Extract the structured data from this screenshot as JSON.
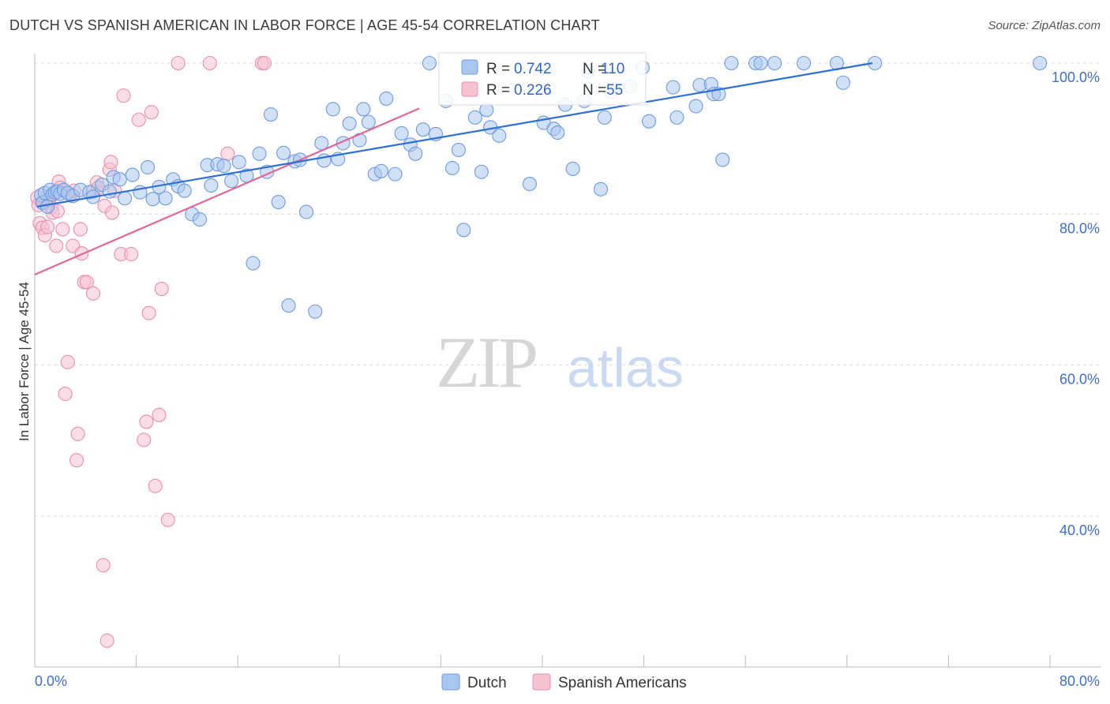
{
  "header": {
    "title": "DUTCH VS SPANISH AMERICAN IN LABOR FORCE | AGE 45-54 CORRELATION CHART",
    "source": "Source: ZipAtlas.com"
  },
  "watermark": {
    "zip": "ZIP",
    "atlas": "atlas"
  },
  "colors": {
    "dutch_fill": "#a9c6ee",
    "dutch_stroke": "#6f9be0",
    "dutch_line": "#2e6fd6",
    "spanish_fill": "#f6c1d1",
    "spanish_stroke": "#ea8fab",
    "spanish_line": "#e0679a",
    "tick_label": "#3f6fc9",
    "grid": "#dddddd"
  },
  "chart_data": {
    "type": "scatter",
    "title": "DUTCH VS SPANISH AMERICAN IN LABOR FORCE | AGE 45-54 CORRELATION CHART",
    "xlabel": "",
    "ylabel": "In Labor Force | Age 45-54",
    "xlim": [
      0,
      80
    ],
    "ylim": [
      20,
      101
    ],
    "x_tick_labels": [
      "0.0%",
      "80.0%"
    ],
    "y_ticks": [
      40,
      60,
      80,
      100
    ],
    "y_tick_labels": [
      "40.0%",
      "60.0%",
      "80.0%",
      "100.0%"
    ],
    "legend": {
      "dutch": {
        "r_label": "R =",
        "r_value": "0.742",
        "n_label": "N =",
        "n_value": "110"
      },
      "spanish": {
        "r_label": "R =",
        "r_value": "0.226",
        "n_label": "N =",
        "n_value": "55"
      }
    },
    "series": [
      {
        "name": "Dutch",
        "trend": {
          "x": [
            0.2,
            66
          ],
          "y": [
            81.0,
            100.0
          ]
        },
        "points": [
          [
            0.5,
            82.5
          ],
          [
            0.6,
            81.5
          ],
          [
            0.8,
            82.8
          ],
          [
            1.0,
            81.0
          ],
          [
            1.2,
            83.2
          ],
          [
            1.4,
            82.6
          ],
          [
            1.6,
            82.9
          ],
          [
            1.8,
            83.0
          ],
          [
            2.0,
            82.7
          ],
          [
            2.3,
            83.2
          ],
          [
            2.6,
            82.8
          ],
          [
            3.0,
            82.4
          ],
          [
            3.6,
            83.2
          ],
          [
            4.3,
            82.9
          ],
          [
            4.6,
            82.3
          ],
          [
            5.3,
            83.9
          ],
          [
            5.9,
            83.0
          ],
          [
            6.2,
            84.9
          ],
          [
            6.7,
            84.6
          ],
          [
            7.1,
            82.1
          ],
          [
            7.7,
            85.2
          ],
          [
            8.3,
            82.9
          ],
          [
            8.9,
            86.2
          ],
          [
            9.3,
            82.0
          ],
          [
            9.8,
            83.6
          ],
          [
            10.3,
            82.1
          ],
          [
            10.9,
            84.6
          ],
          [
            11.3,
            83.7
          ],
          [
            11.8,
            83.1
          ],
          [
            12.4,
            80.0
          ],
          [
            13.0,
            79.3
          ],
          [
            13.6,
            86.5
          ],
          [
            13.9,
            83.8
          ],
          [
            14.4,
            86.6
          ],
          [
            14.9,
            86.4
          ],
          [
            15.5,
            84.4
          ],
          [
            16.1,
            86.9
          ],
          [
            16.7,
            85.1
          ],
          [
            17.2,
            73.5
          ],
          [
            17.7,
            88.0
          ],
          [
            18.3,
            85.6
          ],
          [
            18.6,
            93.2
          ],
          [
            19.2,
            81.6
          ],
          [
            19.6,
            88.1
          ],
          [
            20.0,
            67.9
          ],
          [
            20.5,
            87.0
          ],
          [
            20.9,
            87.2
          ],
          [
            21.4,
            80.3
          ],
          [
            22.1,
            67.1
          ],
          [
            22.6,
            89.4
          ],
          [
            22.8,
            87.1
          ],
          [
            23.5,
            93.9
          ],
          [
            23.9,
            87.3
          ],
          [
            24.3,
            89.4
          ],
          [
            24.8,
            92.0
          ],
          [
            25.6,
            89.8
          ],
          [
            25.9,
            93.9
          ],
          [
            26.3,
            92.2
          ],
          [
            26.8,
            85.3
          ],
          [
            27.3,
            85.7
          ],
          [
            27.7,
            95.3
          ],
          [
            28.4,
            85.3
          ],
          [
            28.9,
            90.7
          ],
          [
            29.6,
            89.2
          ],
          [
            30.0,
            88.0
          ],
          [
            30.6,
            91.2
          ],
          [
            31.1,
            100.0
          ],
          [
            31.6,
            90.6
          ],
          [
            32.4,
            95.0
          ],
          [
            32.9,
            86.1
          ],
          [
            33.4,
            88.5
          ],
          [
            33.8,
            77.9
          ],
          [
            34.7,
            92.8
          ],
          [
            35.2,
            85.6
          ],
          [
            35.6,
            93.8
          ],
          [
            35.9,
            91.5
          ],
          [
            36.6,
            90.4
          ],
          [
            39.0,
            84.0
          ],
          [
            40.1,
            92.1
          ],
          [
            40.9,
            91.3
          ],
          [
            41.2,
            90.8
          ],
          [
            41.8,
            94.5
          ],
          [
            42.4,
            86.0
          ],
          [
            43.3,
            95.0
          ],
          [
            43.6,
            98.9
          ],
          [
            44.6,
            83.3
          ],
          [
            44.9,
            92.8
          ],
          [
            45.4,
            96.2
          ],
          [
            46.9,
            96.9
          ],
          [
            47.9,
            99.4
          ],
          [
            48.4,
            92.3
          ],
          [
            50.3,
            96.8
          ],
          [
            50.6,
            92.8
          ],
          [
            52.1,
            94.3
          ],
          [
            52.4,
            97.1
          ],
          [
            53.3,
            97.2
          ],
          [
            53.5,
            95.9
          ],
          [
            53.9,
            95.9
          ],
          [
            54.2,
            87.2
          ],
          [
            54.9,
            100.0
          ],
          [
            56.8,
            100.0
          ],
          [
            57.2,
            100.0
          ],
          [
            58.3,
            100.0
          ],
          [
            60.6,
            100.0
          ],
          [
            63.2,
            100.0
          ],
          [
            63.7,
            97.4
          ],
          [
            66.2,
            100.0
          ],
          [
            79.2,
            100.0
          ]
        ]
      },
      {
        "name": "Spanish Americans",
        "trend": {
          "x": [
            0.0,
            30.3
          ],
          "y": [
            72.0,
            94.0
          ]
        },
        "points": [
          [
            0.2,
            82.2
          ],
          [
            0.3,
            81.2
          ],
          [
            0.4,
            78.8
          ],
          [
            0.6,
            78.2
          ],
          [
            0.7,
            81.6
          ],
          [
            0.8,
            77.2
          ],
          [
            1.0,
            78.3
          ],
          [
            1.1,
            81.9
          ],
          [
            1.3,
            80.9
          ],
          [
            1.4,
            80.2
          ],
          [
            1.6,
            82.7
          ],
          [
            1.7,
            75.8
          ],
          [
            1.8,
            80.4
          ],
          [
            1.9,
            84.3
          ],
          [
            2.0,
            83.5
          ],
          [
            2.2,
            78.0
          ],
          [
            2.4,
            56.2
          ],
          [
            2.6,
            60.4
          ],
          [
            2.8,
            82.6
          ],
          [
            3.0,
            75.8
          ],
          [
            3.1,
            83.1
          ],
          [
            3.3,
            47.4
          ],
          [
            3.4,
            50.9
          ],
          [
            3.6,
            78.0
          ],
          [
            3.7,
            74.8
          ],
          [
            3.9,
            71.0
          ],
          [
            4.1,
            71.0
          ],
          [
            4.6,
            83.0
          ],
          [
            4.6,
            69.5
          ],
          [
            4.9,
            84.2
          ],
          [
            5.0,
            83.5
          ],
          [
            5.4,
            33.5
          ],
          [
            5.5,
            81.1
          ],
          [
            5.7,
            23.5
          ],
          [
            5.9,
            85.9
          ],
          [
            6.0,
            86.9
          ],
          [
            6.1,
            80.2
          ],
          [
            6.3,
            83.1
          ],
          [
            6.8,
            74.7
          ],
          [
            7.0,
            95.7
          ],
          [
            7.6,
            74.7
          ],
          [
            8.2,
            92.5
          ],
          [
            8.6,
            50.1
          ],
          [
            8.8,
            52.5
          ],
          [
            9.0,
            66.9
          ],
          [
            9.2,
            93.5
          ],
          [
            9.5,
            44.0
          ],
          [
            9.8,
            53.4
          ],
          [
            10.0,
            70.1
          ],
          [
            10.5,
            39.5
          ],
          [
            11.3,
            100.0
          ],
          [
            13.8,
            100.0
          ],
          [
            15.2,
            88.0
          ],
          [
            17.9,
            100.0
          ],
          [
            18.1,
            100.0
          ]
        ]
      }
    ]
  },
  "bottom_legend": {
    "dutch": "Dutch",
    "spanish": "Spanish Americans"
  }
}
